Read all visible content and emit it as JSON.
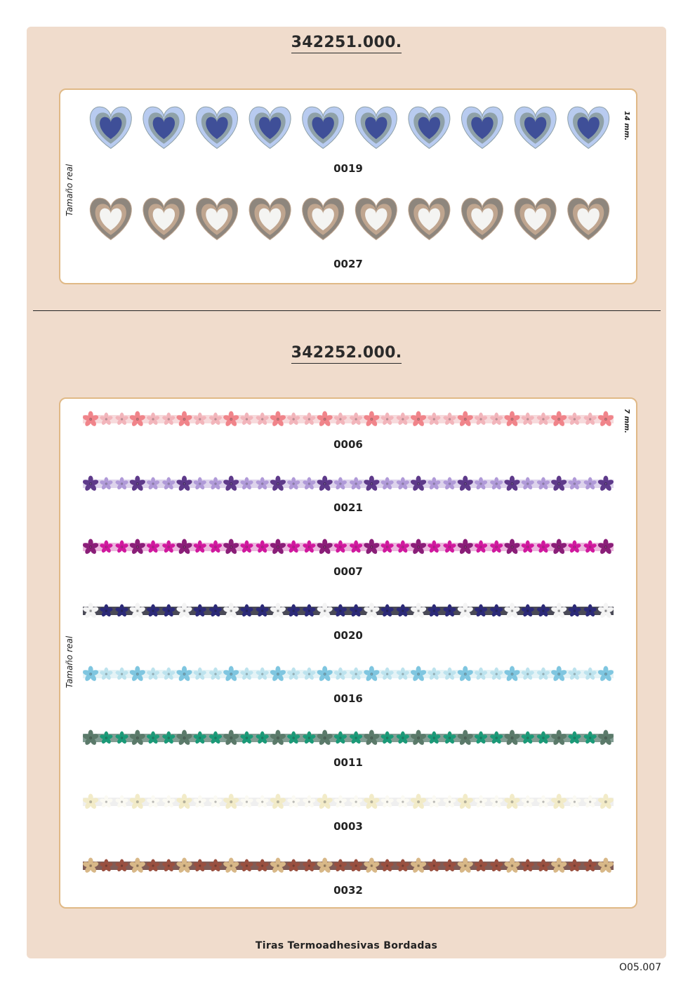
{
  "products": [
    {
      "code": "342251.000.",
      "real_size_label": "Tamaño real",
      "size_label": "14 mm.",
      "variants": [
        {
          "code": "0019",
          "pattern": "hearts",
          "main": "#b8cbf0",
          "mid": "#8fa1a8",
          "center": "#3f4f98"
        },
        {
          "code": "0027",
          "pattern": "hearts",
          "main": "#8e867d",
          "mid": "#bfa58f",
          "center": "#f4f4f2"
        }
      ]
    },
    {
      "code": "342252.000.",
      "real_size_label": "Tamaño real",
      "size_label": "7 mm.",
      "variants": [
        {
          "code": "0006",
          "pattern": "flowers",
          "a": "#f0848a",
          "b": "#f2b5bb",
          "band": "#f6d3d6"
        },
        {
          "code": "0021",
          "pattern": "flowers",
          "a": "#5e3a8a",
          "b": "#b09ad8",
          "band": "#d7cbe9"
        },
        {
          "code": "0007",
          "pattern": "flowers",
          "a": "#8a1e78",
          "b": "#d0199e",
          "band": "#e7a9d7"
        },
        {
          "code": "0020",
          "pattern": "flowers",
          "a": "#f4f4f4",
          "b": "#2c2a78",
          "band": "#2a2a3a"
        },
        {
          "code": "0016",
          "pattern": "flowers",
          "a": "#7fc6e0",
          "b": "#bde3ee",
          "band": "#dff1f5"
        },
        {
          "code": "0011",
          "pattern": "flowers",
          "a": "#5b7a6a",
          "b": "#1b9a78",
          "band": "#6c8c80"
        },
        {
          "code": "0003",
          "pattern": "flowers",
          "a": "#f2ebc8",
          "b": "#fbfaf3",
          "band": "#ececec"
        },
        {
          "code": "0032",
          "pattern": "flowers",
          "a": "#d8b888",
          "b": "#9a5040",
          "band": "#6a4038"
        }
      ]
    }
  ],
  "footer": "Tiras Termoadhesivas Bordadas",
  "page_number": "O05.007"
}
